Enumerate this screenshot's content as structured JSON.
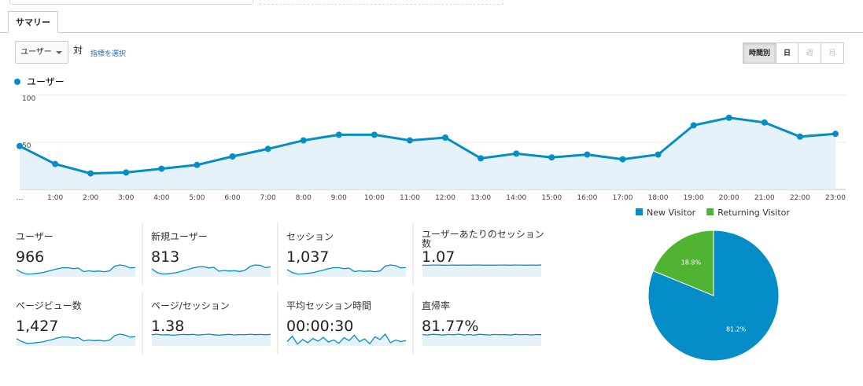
{
  "tabs": [
    "サマリー"
  ],
  "controls": {
    "metric": "ユーザー",
    "vs": "対",
    "select_metric": "指標を選択",
    "periods": [
      "時間別",
      "日",
      "週",
      "月"
    ]
  },
  "chart_data": [
    {
      "type": "line",
      "categories": [
        "…",
        "1:00",
        "2:00",
        "3:00",
        "4:00",
        "5:00",
        "6:00",
        "7:00",
        "8:00",
        "9:00",
        "10:00",
        "11:00",
        "12:00",
        "13:00",
        "14:00",
        "15:00",
        "16:00",
        "17:00",
        "18:00",
        "19:00",
        "20:00",
        "21:00",
        "22:00",
        "23:00"
      ],
      "series": [
        {
          "name": "ユーザー",
          "color": "#058dc7",
          "values": [
            46,
            27,
            17,
            18,
            22,
            26,
            35,
            43,
            52,
            58,
            58,
            52,
            55,
            33,
            38,
            34,
            37,
            32,
            37,
            68,
            76,
            71,
            56,
            59
          ]
        }
      ],
      "ylim": [
        0,
        100
      ],
      "yticks": [
        50,
        100
      ],
      "grid": true
    },
    {
      "type": "pie",
      "categories": [
        "New Visitor",
        "Returning Visitor"
      ],
      "values": [
        81.2,
        18.8
      ],
      "value_labels": [
        "81.2%",
        "18.8%"
      ],
      "colors": [
        "#058dc7",
        "#50b432"
      ]
    }
  ],
  "metrics": [
    {
      "label": "ユーザー",
      "value": "966",
      "sparkline": [
        46,
        27,
        17,
        18,
        22,
        26,
        35,
        43,
        52,
        58,
        58,
        52,
        55,
        33,
        38,
        34,
        37,
        32,
        37,
        68,
        76,
        71,
        56,
        59
      ]
    },
    {
      "label": "新規ユーザー",
      "value": "813",
      "sparkline": [
        40,
        22,
        14,
        15,
        18,
        22,
        30,
        37,
        45,
        50,
        51,
        45,
        48,
        28,
        32,
        29,
        31,
        27,
        32,
        52,
        60,
        58,
        46,
        50
      ]
    },
    {
      "label": "セッション",
      "value": "1,037",
      "sparkline": [
        48,
        28,
        18,
        19,
        23,
        27,
        37,
        45,
        55,
        61,
        62,
        55,
        58,
        35,
        40,
        36,
        39,
        34,
        39,
        72,
        80,
        75,
        59,
        62
      ]
    },
    {
      "label": "ユーザーあたりのセッション数",
      "value": "1.07",
      "sparkline": [
        1.04,
        1.04,
        1.06,
        1.06,
        1.05,
        1.04,
        1.06,
        1.05,
        1.06,
        1.05,
        1.07,
        1.06,
        1.05,
        1.06,
        1.05,
        1.06,
        1.06,
        1.05,
        1.06,
        1.06,
        1.05,
        1.06,
        1.05,
        1.07
      ]
    },
    {
      "label": "ページビュー数",
      "value": "1,427",
      "sparkline": [
        66,
        40,
        24,
        25,
        31,
        36,
        49,
        60,
        74,
        82,
        80,
        70,
        76,
        46,
        54,
        48,
        52,
        45,
        52,
        95,
        108,
        100,
        80,
        84
      ]
    },
    {
      "label": "ページ/セッション",
      "value": "1.38",
      "sparkline": [
        1.35,
        1.42,
        1.33,
        1.36,
        1.3,
        1.34,
        1.39,
        1.36,
        1.4,
        1.32,
        1.37,
        1.43,
        1.35,
        1.31,
        1.36,
        1.4,
        1.33,
        1.38,
        1.34,
        1.42,
        1.36,
        1.39,
        1.35,
        1.4
      ]
    },
    {
      "label": "平均セッション時間",
      "value": "00:00:30",
      "sparkline": [
        20,
        45,
        8,
        30,
        15,
        35,
        22,
        40,
        18,
        28,
        12,
        38,
        25,
        50,
        20,
        33,
        10,
        42,
        30,
        55,
        15,
        27,
        20,
        25
      ]
    },
    {
      "label": "直帰率",
      "value": "81.77%",
      "sparkline": [
        82,
        79,
        84,
        81,
        78,
        83,
        80,
        85,
        79,
        82,
        77,
        84,
        81,
        79,
        83,
        80,
        82,
        78,
        84,
        80,
        83,
        79,
        82,
        81
      ]
    }
  ]
}
